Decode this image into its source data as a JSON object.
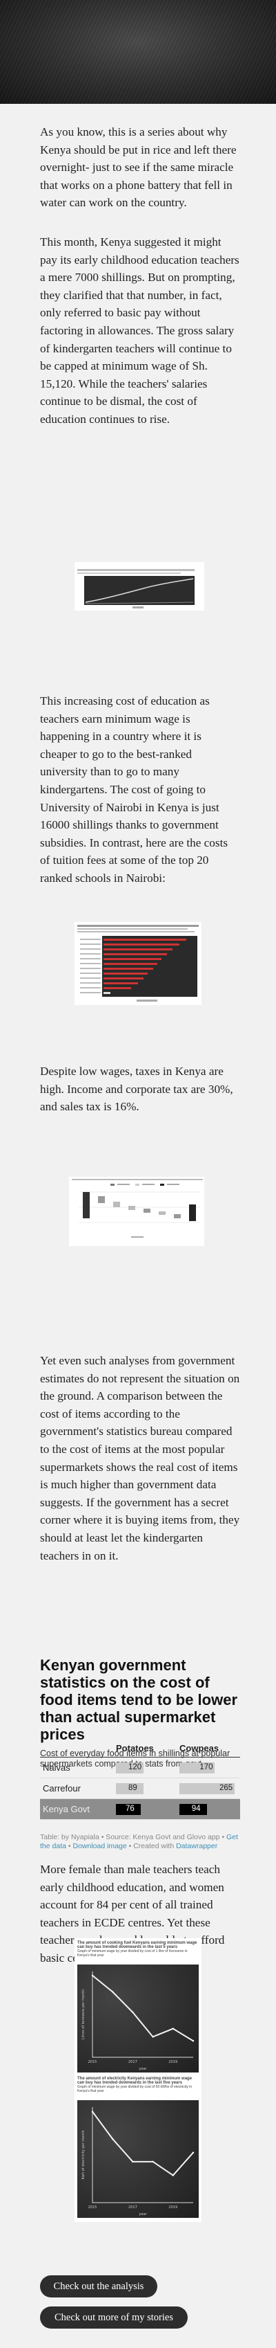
{
  "paragraphs": {
    "p1": "As you know, this is a series about why Kenya should be put in rice and left there overnight- just to see if the same miracle that works on a phone battery that fell in water can work on the country.",
    "p2": "This month, Kenya suggested it might pay its early childhood education teachers a mere 7000 shillings. But on prompting, they clarified that that number, in fact, only referred to basic pay without factoring in allowances. The gross salary of kindergarten teachers will continue to be capped at minimum wage of Sh. 15,120. While the teachers' salaries continue to be dismal, the cost of education continues to rise.",
    "p3": "This increasing cost of education as teachers earn minimum wage is happening in a country where it is cheaper to go to the best-ranked university than to go to many kindergartens. The cost of going to University of Nairobi in Kenya is just 16000 shillings thanks to government subsidies. In contrast, here are the costs of tuition fees at some of the top 20 ranked schools in Nairobi:",
    "p4": "Despite low wages, taxes in Kenya are high. Income and corporate tax are 30%, and sales tax is 16%.",
    "p5": "Yet even such analyses from government estimates do not represent the situation on the ground. A comparison between the cost of items according to the government's statistics bureau compared to the cost of items at the most popular supermarkets shows the real cost of items is much higher than government data suggests. If the government has a secret corner where it is buying items from, they should at least let the kindergarten teachers in on it.",
    "p6": "More female than male teachers teach early childhood education, and women account for 84 per cent of all trained teachers in ECDE centres. Yet these teachers are less and less able to afford basic commodities"
  },
  "table_chart": {
    "title": "Kenyan government statistics on the cost of food items tend to be lower than actual supermarket prices",
    "subtitle": "Cost of everyday food items in shillings at popular supermarkets compared to stats from govt",
    "columns": [
      "",
      "Potatoes",
      "Cowpeas"
    ],
    "max": 265,
    "rows": [
      {
        "name": "Naivas",
        "potatoes": 120,
        "cowpeas": 170
      },
      {
        "name": "Carrefour",
        "potatoes": 89,
        "cowpeas": 265
      },
      {
        "name": "Kenya Govt",
        "potatoes": 76,
        "cowpeas": 94
      }
    ],
    "source_prefix": "Table: by Nyapiala • Source: Kenya Govt and Glovo app •",
    "get_data": "Get the data",
    "download": "Download image",
    "created_with": "• Created with",
    "datawrapper": "Datawrapper"
  },
  "chalk_charts": [
    {
      "title": "The amount of cooking fuel Kenyans earning minimum wage can buy has trended downwards in the last 5 years",
      "subtitle": "Graph of minimum wage by year divided by cost of 1 litre of Kerosene in Kenya's that year",
      "ylabel": "Litres of kerosene per month",
      "xlabel": "year",
      "x": [
        2015,
        2016,
        2017,
        2018,
        2019,
        2020
      ],
      "values": [
        100,
        80,
        55,
        25,
        35,
        20
      ]
    },
    {
      "title": "The amount of electricity Kenyans earning minimum wage can buy has trended downwards in the last five years",
      "subtitle": "Graph of minimum wage by year divided by cost of 50 kWhs of electricity in Kenya's that year",
      "ylabel": "Kwh of electricity per month",
      "xlabel": "year",
      "x": [
        2015,
        2016,
        2017,
        2018,
        2019,
        2020
      ],
      "values": [
        100,
        70,
        45,
        45,
        30,
        55
      ]
    }
  ],
  "buttons": {
    "analysis": "Check out the analysis",
    "stories": "Check out more of my stories"
  },
  "colors": {
    "background": "#f1f1f1",
    "dark_row": "#8d8d8d",
    "button": "#2d2d2d",
    "link": "#3c8fb5"
  }
}
